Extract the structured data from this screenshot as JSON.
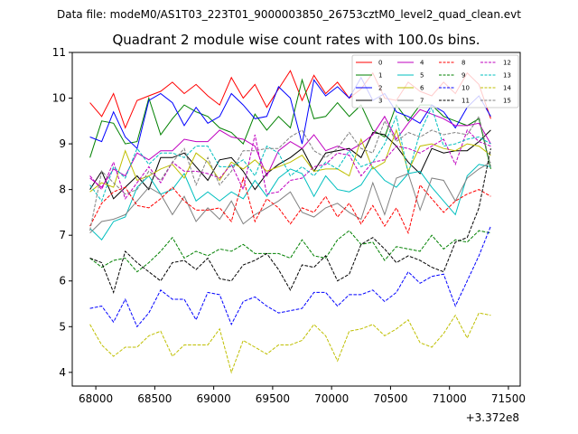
{
  "figure": {
    "suptitle": "Data file: modeM0/AS1T03_223T01_9000003850_26753cztM0_level2_quad_clean.evt",
    "title": "Quadrant 2 module wise count rates with 100.0s bins.",
    "x_offset_label": "+3.372e8"
  },
  "chart_data": {
    "type": "line",
    "title": "Quadrant 2 module wise count rates with 100.0s bins.",
    "xlabel": "",
    "ylabel": "",
    "x_offset": 337200000,
    "xlim": [
      67800,
      71600
    ],
    "ylim": [
      3.7,
      11.0
    ],
    "x_ticks": [
      68000,
      68500,
      69000,
      69500,
      70000,
      70500,
      71000,
      71500
    ],
    "x_tick_labels": [
      "68000",
      "68500",
      "69000",
      "69500",
      "70000",
      "70500",
      "71000",
      "71500"
    ],
    "y_ticks": [
      4,
      5,
      6,
      7,
      8,
      9,
      10,
      11
    ],
    "y_tick_labels": [
      "4",
      "5",
      "6",
      "7",
      "8",
      "9",
      "10",
      "11"
    ],
    "grid": false,
    "legend_position": "top-right",
    "legend_columns": 4,
    "x": [
      67950,
      68050,
      68150,
      68250,
      68350,
      68450,
      68550,
      68650,
      68750,
      68850,
      68950,
      69050,
      69150,
      69250,
      69350,
      69450,
      69550,
      69650,
      69750,
      69850,
      69950,
      70050,
      70150,
      70250,
      70350,
      70450,
      70550,
      70650,
      70750,
      70850,
      70950,
      71050,
      71150,
      71250,
      71350
    ],
    "series": [
      {
        "name": "0",
        "color": "#ff0000",
        "dash": "solid",
        "values": [
          9.9,
          9.6,
          10.1,
          9.35,
          9.95,
          10.05,
          10.15,
          10.35,
          10.1,
          10.3,
          10.05,
          9.85,
          10.45,
          10.0,
          10.3,
          9.8,
          10.2,
          10.6,
          9.95,
          10.5,
          10.1,
          10.35,
          10.0,
          10.2,
          10.55,
          10.0,
          9.95,
          10.35,
          10.15,
          10.05,
          10.35,
          10.1,
          10.55,
          10.3,
          9.55
        ]
      },
      {
        "name": "1",
        "color": "#008000",
        "dash": "solid",
        "values": [
          8.7,
          9.5,
          9.45,
          9.0,
          9.05,
          10.0,
          9.2,
          9.55,
          9.85,
          9.7,
          9.6,
          9.35,
          9.25,
          9.0,
          9.65,
          9.3,
          9.6,
          9.35,
          10.4,
          9.55,
          9.6,
          9.9,
          9.6,
          9.85,
          9.3,
          9.15,
          9.85,
          9.5,
          9.85,
          9.85,
          9.6,
          9.5,
          9.4,
          9.55,
          8.45
        ]
      },
      {
        "name": "2",
        "color": "#0000ff",
        "dash": "solid",
        "values": [
          9.15,
          9.05,
          9.7,
          9.15,
          8.9,
          9.95,
          10.1,
          9.9,
          9.4,
          9.8,
          9.45,
          9.6,
          10.1,
          9.85,
          9.55,
          9.6,
          10.25,
          10.0,
          9.0,
          10.4,
          10.05,
          10.25,
          10.0,
          10.45,
          9.95,
          10.1,
          9.7,
          9.6,
          9.45,
          9.85,
          9.7,
          9.35,
          9.8,
          10.05,
          9.6
        ]
      },
      {
        "name": "3",
        "color": "#000000",
        "dash": "solid",
        "values": [
          8.0,
          8.4,
          7.8,
          8.05,
          8.3,
          8.0,
          8.7,
          8.7,
          8.8,
          8.5,
          8.2,
          8.65,
          8.7,
          8.4,
          8.0,
          8.35,
          8.55,
          8.7,
          8.9,
          8.4,
          8.8,
          8.85,
          8.9,
          8.7,
          9.25,
          9.2,
          8.95,
          8.6,
          8.35,
          8.9,
          8.8,
          8.85,
          8.85,
          9.05,
          9.3
        ]
      },
      {
        "name": "4",
        "color": "#bf00bf",
        "dash": "solid",
        "values": [
          8.25,
          8.05,
          8.45,
          8.3,
          8.8,
          8.65,
          8.85,
          8.85,
          9.1,
          9.05,
          9.05,
          9.3,
          9.15,
          9.1,
          8.95,
          8.3,
          8.85,
          9.05,
          8.9,
          9.2,
          8.85,
          8.95,
          8.85,
          9.0,
          9.2,
          9.6,
          9.1,
          9.45,
          9.75,
          9.65,
          9.55,
          9.4,
          9.4,
          9.45,
          9.0
        ]
      },
      {
        "name": "5",
        "color": "#00bfbf",
        "dash": "solid",
        "values": [
          7.15,
          6.9,
          7.3,
          7.4,
          8.05,
          8.3,
          7.9,
          8.0,
          8.35,
          7.75,
          7.95,
          7.75,
          7.95,
          7.8,
          8.2,
          7.85,
          8.25,
          8.45,
          8.35,
          7.85,
          8.3,
          8.0,
          7.95,
          8.1,
          8.5,
          8.2,
          8.05,
          8.35,
          8.4,
          8.05,
          7.75,
          7.45,
          8.3,
          8.55,
          8.5
        ]
      },
      {
        "name": "6",
        "color": "#bfbf00",
        "dash": "solid",
        "values": [
          7.95,
          8.15,
          8.05,
          8.85,
          8.2,
          8.3,
          8.45,
          8.55,
          8.25,
          8.8,
          8.6,
          8.2,
          8.6,
          8.45,
          8.65,
          8.4,
          8.5,
          8.6,
          8.75,
          8.4,
          8.45,
          8.45,
          8.3,
          9.1,
          8.45,
          8.6,
          9.3,
          8.4,
          8.95,
          9.0,
          8.9,
          8.85,
          9.0,
          8.95,
          8.75
        ]
      },
      {
        "name": "7",
        "color": "#808080",
        "dash": "solid",
        "values": [
          7.05,
          7.3,
          7.35,
          7.45,
          7.75,
          8.05,
          7.9,
          7.45,
          7.85,
          7.3,
          7.6,
          7.35,
          7.75,
          7.25,
          7.45,
          7.6,
          7.75,
          7.95,
          7.5,
          7.4,
          7.6,
          7.7,
          7.5,
          7.35,
          8.15,
          7.45,
          8.25,
          8.35,
          7.55,
          8.25,
          8.2,
          7.75,
          8.25,
          8.45,
          8.6
        ]
      },
      {
        "name": "8",
        "color": "#ff0000",
        "dash": "dashed",
        "values": [
          7.2,
          7.7,
          7.95,
          8.05,
          7.65,
          7.6,
          7.8,
          8.05,
          7.75,
          7.55,
          7.55,
          7.6,
          7.3,
          8.25,
          7.3,
          7.8,
          7.6,
          7.25,
          7.6,
          7.5,
          7.85,
          7.4,
          7.7,
          7.25,
          7.65,
          7.2,
          7.6,
          7.05,
          8.1,
          7.8,
          7.5,
          7.75,
          7.9,
          8.0,
          7.85
        ]
      },
      {
        "name": "9",
        "color": "#008000",
        "dash": "dashed",
        "values": [
          6.5,
          6.3,
          6.45,
          6.5,
          6.2,
          6.4,
          6.65,
          6.95,
          6.5,
          6.65,
          6.55,
          6.7,
          6.65,
          6.8,
          6.6,
          6.6,
          6.6,
          6.5,
          6.9,
          6.55,
          6.5,
          6.9,
          7.1,
          6.8,
          6.85,
          6.45,
          6.75,
          6.7,
          6.65,
          7.0,
          6.7,
          6.9,
          6.85,
          7.1,
          7.05
        ]
      },
      {
        "name": "10",
        "color": "#0000ff",
        "dash": "dashed",
        "values": [
          5.4,
          5.45,
          5.1,
          5.6,
          5.0,
          5.3,
          5.8,
          5.6,
          5.6,
          5.15,
          5.75,
          5.7,
          5.05,
          5.55,
          5.65,
          5.45,
          5.3,
          5.35,
          5.4,
          5.75,
          5.75,
          5.45,
          5.7,
          5.7,
          5.8,
          5.55,
          5.75,
          6.2,
          5.95,
          6.1,
          6.15,
          5.45,
          6.0,
          6.55,
          7.2
        ]
      },
      {
        "name": "11",
        "color": "#000000",
        "dash": "dashed",
        "values": [
          6.5,
          6.4,
          5.75,
          6.65,
          6.4,
          6.2,
          6.0,
          6.4,
          6.45,
          6.25,
          6.5,
          6.05,
          6.0,
          6.35,
          6.45,
          6.6,
          6.25,
          5.8,
          6.35,
          6.3,
          6.55,
          6.0,
          6.15,
          6.8,
          6.95,
          6.7,
          6.4,
          6.55,
          6.45,
          6.3,
          6.2,
          6.85,
          6.95,
          7.6,
          8.9
        ]
      },
      {
        "name": "12",
        "color": "#bf00bf",
        "dash": "dashed",
        "values": [
          8.3,
          8.0,
          8.6,
          7.8,
          8.15,
          8.5,
          8.15,
          8.6,
          8.4,
          8.4,
          8.35,
          8.25,
          8.55,
          8.0,
          9.2,
          7.9,
          7.95,
          8.2,
          8.25,
          8.5,
          8.55,
          8.8,
          8.75,
          8.3,
          8.6,
          8.65,
          8.95,
          8.9,
          8.8,
          8.95,
          9.1,
          8.55,
          9.3,
          9.05,
          8.95
        ]
      },
      {
        "name": "13",
        "color": "#00bfbf",
        "dash": "dashed",
        "values": [
          8.1,
          7.75,
          8.5,
          8.25,
          8.9,
          8.55,
          8.8,
          8.8,
          8.7,
          8.95,
          8.95,
          8.5,
          8.5,
          8.65,
          8.3,
          8.95,
          8.8,
          8.3,
          8.5,
          8.3,
          8.6,
          8.45,
          8.85,
          8.5,
          8.6,
          9.0,
          9.6,
          8.35,
          9.25,
          9.8,
          8.95,
          9.0,
          9.1,
          9.15,
          9.0
        ]
      },
      {
        "name": "14",
        "color": "#bfbf00",
        "dash": "dashed",
        "values": [
          5.05,
          4.6,
          4.35,
          4.55,
          4.55,
          4.8,
          4.9,
          4.35,
          4.6,
          4.6,
          4.6,
          4.95,
          4.0,
          4.7,
          4.55,
          4.4,
          4.6,
          4.6,
          4.7,
          5.05,
          4.8,
          4.25,
          4.9,
          4.95,
          5.05,
          4.8,
          4.95,
          5.15,
          4.65,
          4.55,
          4.85,
          5.25,
          4.75,
          5.3,
          5.25
        ]
      },
      {
        "name": "15",
        "color": "#808080",
        "dash": "dashed",
        "values": [
          7.1,
          8.4,
          8.15,
          7.9,
          8.0,
          8.4,
          8.2,
          8.6,
          8.9,
          8.1,
          8.7,
          8.1,
          8.4,
          8.85,
          8.85,
          8.9,
          8.9,
          9.15,
          9.3,
          8.85,
          8.7,
          8.9,
          9.25,
          8.9,
          8.8,
          9.5,
          9.05,
          9.25,
          9.15,
          9.3,
          9.2,
          9.25,
          9.2,
          9.6,
          8.5
        ]
      }
    ]
  }
}
